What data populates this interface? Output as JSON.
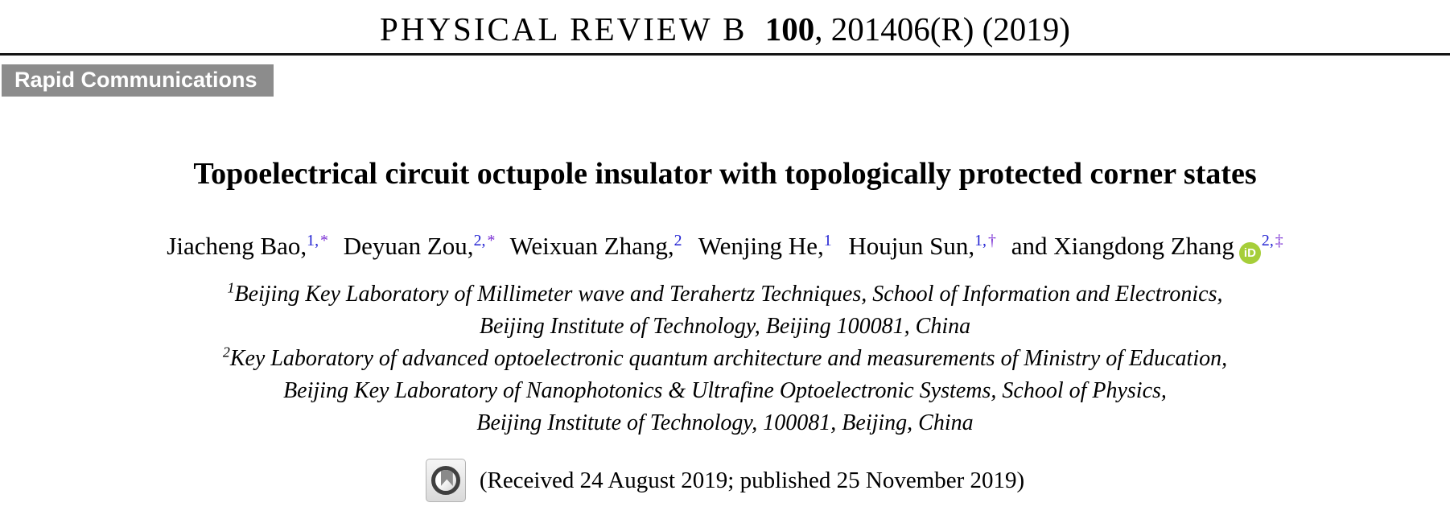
{
  "journal_header": {
    "name": "PHYSICAL REVIEW B",
    "volume": "100",
    "issue_info": ", 201406(R) (2019)"
  },
  "badge": {
    "label": "Rapid Communications"
  },
  "article": {
    "title": "Topoelectrical circuit octupole insulator with topologically protected corner states",
    "authors": [
      {
        "name": "Jiacheng Bao,",
        "sup_num": "1,",
        "sup_sym": "*"
      },
      {
        "name": "Deyuan Zou,",
        "sup_num": "2,",
        "sup_sym": "*"
      },
      {
        "name": "Weixuan Zhang,",
        "sup_num": "2",
        "sup_sym": ""
      },
      {
        "name": "Wenjing He,",
        "sup_num": "1",
        "sup_sym": ""
      },
      {
        "name": "Houjun Sun,",
        "sup_num": "1,",
        "sup_sym": "†"
      },
      {
        "name": "and Xiangdong Zhang",
        "sup_num": "2,",
        "sup_sym": "‡"
      }
    ],
    "affiliations": [
      {
        "sup": "1",
        "text": "Beijing Key Laboratory of Millimeter wave and Terahertz Techniques, School of Information and Electronics,"
      },
      {
        "sup": "",
        "text": "Beijing Institute of Technology, Beijing 100081, China"
      },
      {
        "sup": "2",
        "text": "Key Laboratory of advanced optoelectronic quantum architecture and measurements of Ministry of Education,"
      },
      {
        "sup": "",
        "text": "Beijing Key Laboratory of Nanophotonics & Ultrafine Optoelectronic Systems, School of Physics,"
      },
      {
        "sup": "",
        "text": "Beijing Institute of Technology, 100081, Beijing, China"
      }
    ],
    "received": "(Received 24 August 2019; published 25 November 2019)"
  },
  "icons": {
    "orcid_label": "iD"
  },
  "colors": {
    "badge_bg": "#8c8c8c",
    "sup_number": "#2323d3",
    "sup_symbol": "#7a2fd4",
    "orcid_green": "#a6ce39"
  }
}
